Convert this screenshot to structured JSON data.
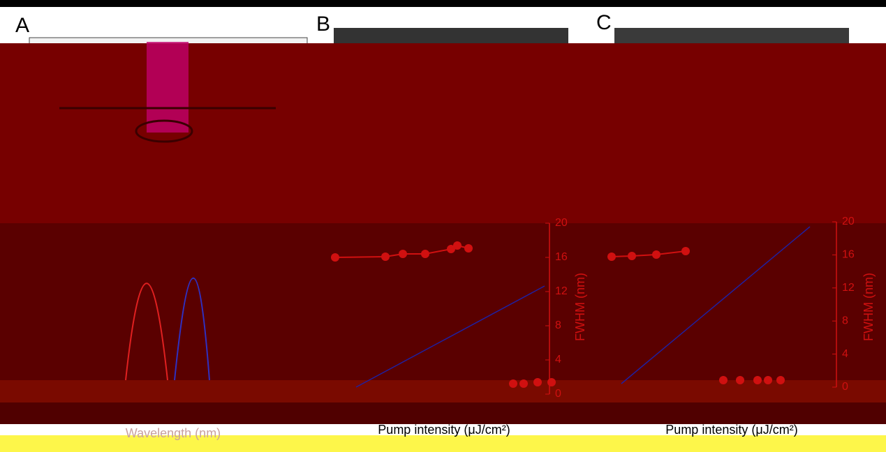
{
  "panels": [
    {
      "label": "A"
    },
    {
      "label": "B"
    },
    {
      "label": "C"
    }
  ],
  "axes": {
    "x_titles": [
      "Wavelength (nm)",
      "Pump intensity (μJ/cm²)",
      "Pump intensity (μJ/cm²)"
    ],
    "fwhm_title": "FWHM (nm)",
    "fwhm_ticks": [
      "20",
      "16",
      "12",
      "8",
      "4",
      "0"
    ]
  }
}
